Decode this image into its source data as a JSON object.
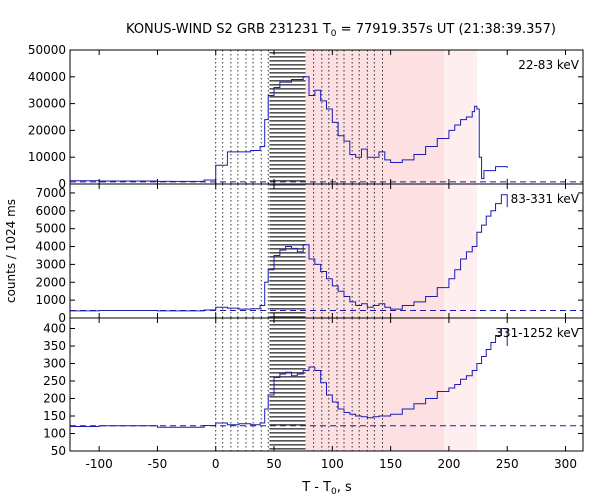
{
  "chart_data": {
    "type": "line",
    "title_main": "KONUS-WIND S2 GRB 231231 T",
    "title_sub": "0",
    "title_rest": " = 77919.357s UT (21:38:39.357)",
    "ylabel": "counts / 1024 ms",
    "xlabel_main": "T - T",
    "xlabel_sub": "0",
    "xlabel_rest": ", s",
    "xlim": [
      -125,
      315
    ],
    "xticks": [
      -100,
      -50,
      0,
      50,
      100,
      150,
      200,
      250,
      300
    ],
    "shading": {
      "hatched": [
        46,
        77
      ],
      "pink_dark": [
        77,
        196
      ],
      "pink_light": [
        196,
        224
      ]
    },
    "dotted_lines": [
      0,
      6,
      13,
      19,
      26,
      32,
      39,
      45,
      84,
      91,
      97,
      104,
      110,
      117,
      123,
      130,
      136,
      143
    ],
    "panels": [
      {
        "label": "22-83 keV",
        "ylim": [
          0,
          50000
        ],
        "yticks": [
          0,
          10000,
          20000,
          30000,
          40000,
          50000
        ],
        "background_level": 800,
        "series": {
          "x": [
            -125,
            -100,
            -50,
            -10,
            0,
            10,
            20,
            30,
            38,
            42,
            45,
            50,
            55,
            60,
            65,
            70,
            75,
            80,
            85,
            90,
            95,
            100,
            105,
            110,
            115,
            120,
            125,
            130,
            135,
            140,
            145,
            150,
            160,
            170,
            180,
            190,
            200,
            205,
            210,
            215,
            220,
            222,
            224,
            226,
            228,
            230,
            240,
            250
          ],
          "y": [
            1200,
            1100,
            1000,
            1500,
            7000,
            12000,
            12000,
            12500,
            14000,
            24000,
            33000,
            36000,
            38000,
            38000,
            39000,
            39000,
            40000,
            33000,
            35000,
            31000,
            28000,
            23000,
            18000,
            16000,
            11000,
            10000,
            13000,
            10000,
            10000,
            12000,
            9000,
            8000,
            9000,
            11000,
            14000,
            17000,
            20000,
            22000,
            24000,
            25000,
            27000,
            29000,
            28000,
            10000,
            2000,
            5000,
            6500,
            6000
          ]
        }
      },
      {
        "label": "83-331 keV",
        "ylim": [
          0,
          7500
        ],
        "yticks": [
          0,
          1000,
          2000,
          3000,
          4000,
          5000,
          6000,
          7000
        ],
        "background_level": 420,
        "series": {
          "x": [
            -125,
            -100,
            -50,
            -10,
            0,
            10,
            20,
            30,
            38,
            42,
            45,
            50,
            55,
            60,
            65,
            70,
            75,
            80,
            85,
            90,
            95,
            100,
            105,
            110,
            115,
            120,
            125,
            130,
            135,
            140,
            145,
            150,
            160,
            170,
            180,
            190,
            200,
            205,
            210,
            215,
            220,
            224,
            228,
            232,
            236,
            240,
            245,
            250
          ],
          "y": [
            400,
            420,
            400,
            450,
            600,
            550,
            500,
            520,
            700,
            2000,
            2700,
            3500,
            3800,
            4000,
            3900,
            3700,
            4100,
            3300,
            3000,
            2600,
            2200,
            1800,
            1500,
            1200,
            900,
            700,
            800,
            600,
            700,
            800,
            600,
            500,
            700,
            900,
            1200,
            1700,
            2200,
            2700,
            3300,
            3700,
            4000,
            4800,
            5200,
            5700,
            6000,
            6400,
            6900,
            6200
          ]
        }
      },
      {
        "label": "331-1252 keV",
        "ylim": [
          50,
          430
        ],
        "yticks": [
          50,
          100,
          150,
          200,
          250,
          300,
          350,
          400
        ],
        "background_level": 122,
        "series": {
          "x": [
            -125,
            -100,
            -50,
            -10,
            0,
            10,
            20,
            30,
            38,
            42,
            45,
            50,
            55,
            60,
            65,
            70,
            75,
            80,
            85,
            90,
            95,
            100,
            105,
            110,
            115,
            120,
            125,
            130,
            135,
            140,
            145,
            150,
            160,
            170,
            180,
            190,
            200,
            205,
            210,
            215,
            220,
            224,
            228,
            232,
            236,
            240,
            245,
            250
          ],
          "y": [
            120,
            122,
            118,
            123,
            130,
            125,
            128,
            125,
            130,
            170,
            210,
            260,
            270,
            275,
            265,
            270,
            280,
            290,
            280,
            245,
            210,
            190,
            170,
            160,
            155,
            150,
            148,
            145,
            148,
            150,
            150,
            155,
            170,
            185,
            200,
            220,
            230,
            240,
            255,
            265,
            280,
            300,
            320,
            340,
            360,
            380,
            400,
            350
          ]
        }
      }
    ]
  }
}
